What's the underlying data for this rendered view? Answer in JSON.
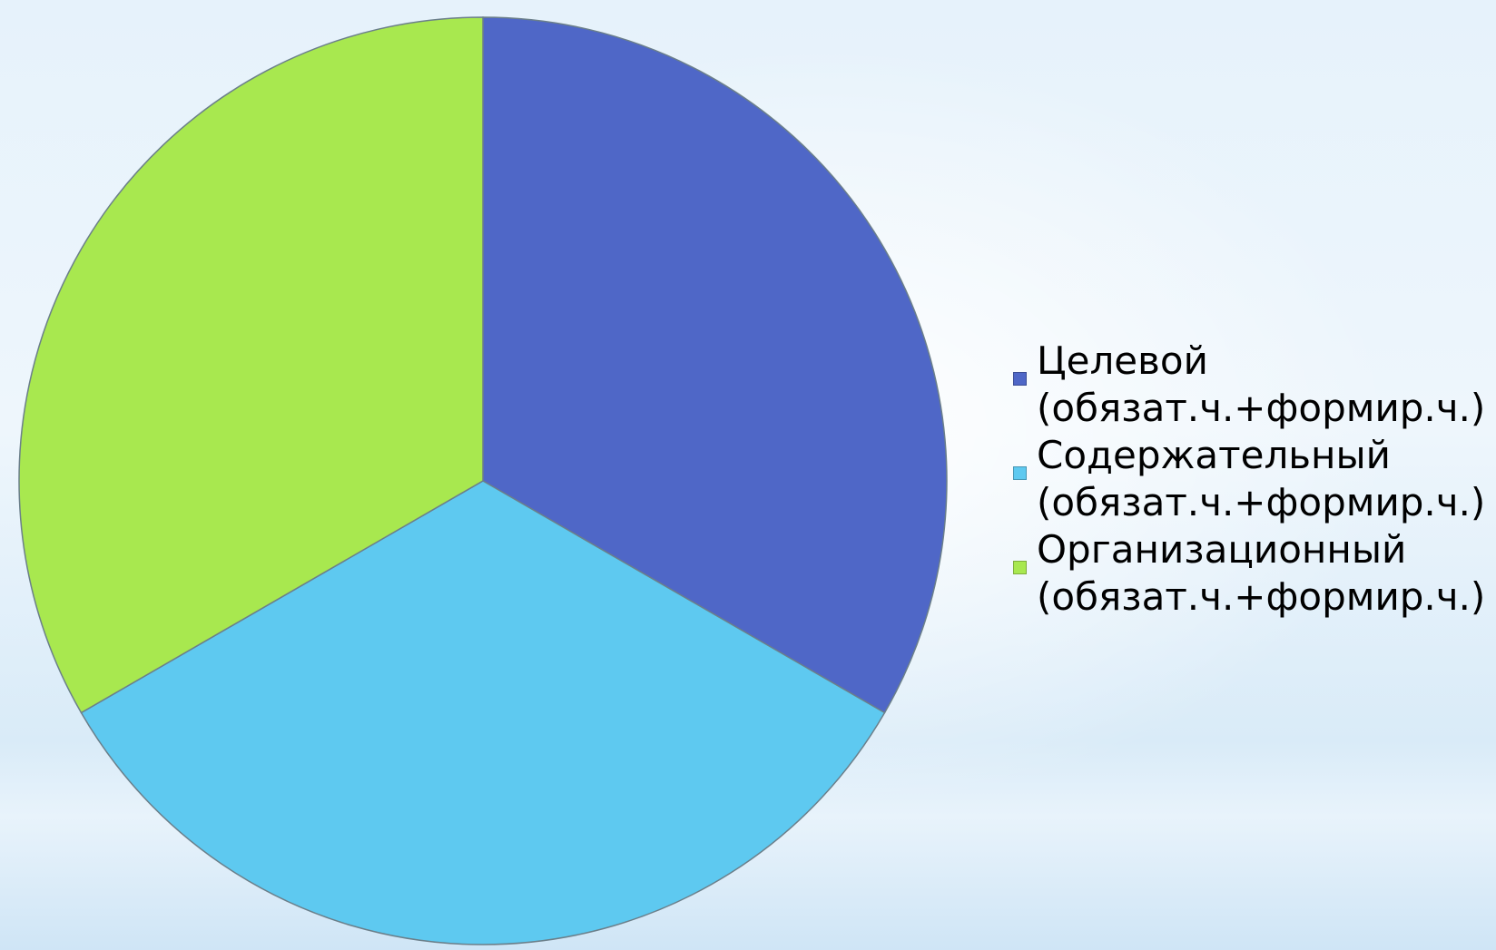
{
  "chart_data": {
    "type": "pie",
    "categories": [
      "Целевой (обязат.ч.+формир.ч.)",
      "Содержательный (обязат.ч.+формир.ч.)",
      "Организационный (обязат.ч.+формир.ч.)"
    ],
    "values": [
      33.3,
      33.3,
      33.3
    ],
    "colors": [
      "#4f67c7",
      "#5ec9f0",
      "#a8e84f"
    ],
    "start_angle_deg": 0,
    "direction": "clockwise",
    "legend_placement": "right"
  },
  "legend": [
    {
      "line1": "Целевой",
      "line2": "(обязат.ч.+формир.ч.)",
      "color": "#4f67c7"
    },
    {
      "line1": "Содержательный",
      "line2": "(обязат.ч.+формир.ч.)",
      "color": "#5ec9f0"
    },
    {
      "line1": "Организационный",
      "line2": "(обязат.ч.+формир.ч.)",
      "color": "#a8e84f"
    }
  ]
}
